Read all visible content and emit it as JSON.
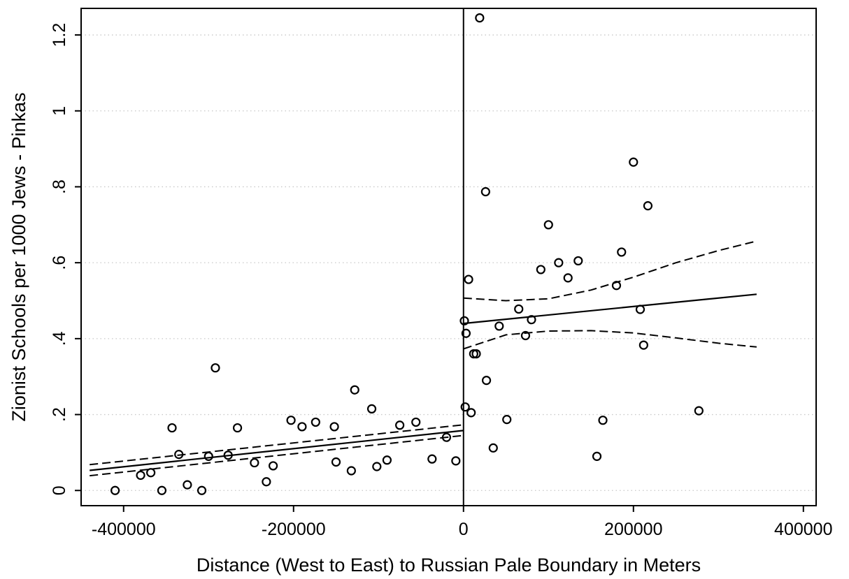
{
  "chart_data": {
    "type": "scatter",
    "xlabel": "Distance (West to East) to Russian Pale Boundary in Meters",
    "ylabel": "Zionist Schools per 1000 Jews - Pinkas",
    "xlim": [
      -450000,
      415000
    ],
    "ylim": [
      -0.04,
      1.27
    ],
    "xticks": [
      -400000,
      -200000,
      0,
      200000,
      400000
    ],
    "xtick_labels": [
      "-400000",
      "-200000",
      "0",
      "200000",
      "400000"
    ],
    "yticks": [
      0,
      0.2,
      0.4,
      0.6,
      0.8,
      1,
      1.2
    ],
    "ytick_labels": [
      "0",
      ".2",
      ".4",
      ".6",
      ".8",
      "1",
      "1.2"
    ],
    "grid": "horizontal dotted",
    "cutoff_x": 0,
    "points": [
      {
        "x": -410000,
        "y": 0.0
      },
      {
        "x": -380000,
        "y": 0.04
      },
      {
        "x": -368000,
        "y": 0.047
      },
      {
        "x": -355000,
        "y": 0.0
      },
      {
        "x": -343000,
        "y": 0.165
      },
      {
        "x": -335000,
        "y": 0.095
      },
      {
        "x": -325000,
        "y": 0.015
      },
      {
        "x": -308000,
        "y": 0.0
      },
      {
        "x": -300000,
        "y": 0.09
      },
      {
        "x": -292000,
        "y": 0.323
      },
      {
        "x": -277000,
        "y": 0.093
      },
      {
        "x": -266000,
        "y": 0.165
      },
      {
        "x": -246000,
        "y": 0.073
      },
      {
        "x": -232000,
        "y": 0.023
      },
      {
        "x": -224000,
        "y": 0.065
      },
      {
        "x": -203000,
        "y": 0.185
      },
      {
        "x": -190000,
        "y": 0.168
      },
      {
        "x": -174000,
        "y": 0.18
      },
      {
        "x": -152000,
        "y": 0.168
      },
      {
        "x": -150000,
        "y": 0.075
      },
      {
        "x": -132000,
        "y": 0.052
      },
      {
        "x": -128000,
        "y": 0.265
      },
      {
        "x": -108000,
        "y": 0.215
      },
      {
        "x": -102000,
        "y": 0.063
      },
      {
        "x": -90000,
        "y": 0.08
      },
      {
        "x": -75000,
        "y": 0.172
      },
      {
        "x": -56000,
        "y": 0.18
      },
      {
        "x": -37000,
        "y": 0.083
      },
      {
        "x": -20000,
        "y": 0.14
      },
      {
        "x": -9000,
        "y": 0.078
      },
      {
        "x": 2000,
        "y": 0.22
      },
      {
        "x": 1000,
        "y": 0.447
      },
      {
        "x": 3000,
        "y": 0.414
      },
      {
        "x": 6000,
        "y": 0.556
      },
      {
        "x": 9000,
        "y": 0.205
      },
      {
        "x": 12000,
        "y": 0.36
      },
      {
        "x": 15000,
        "y": 0.36
      },
      {
        "x": 19000,
        "y": 1.245
      },
      {
        "x": 26000,
        "y": 0.787
      },
      {
        "x": 27000,
        "y": 0.29
      },
      {
        "x": 35000,
        "y": 0.112
      },
      {
        "x": 42000,
        "y": 0.433
      },
      {
        "x": 51000,
        "y": 0.187
      },
      {
        "x": 65000,
        "y": 0.478
      },
      {
        "x": 73000,
        "y": 0.408
      },
      {
        "x": 80000,
        "y": 0.45
      },
      {
        "x": 91000,
        "y": 0.582
      },
      {
        "x": 100000,
        "y": 0.7
      },
      {
        "x": 112000,
        "y": 0.6
      },
      {
        "x": 123000,
        "y": 0.56
      },
      {
        "x": 135000,
        "y": 0.605
      },
      {
        "x": 157000,
        "y": 0.09
      },
      {
        "x": 164000,
        "y": 0.185
      },
      {
        "x": 180000,
        "y": 0.54
      },
      {
        "x": 186000,
        "y": 0.628
      },
      {
        "x": 200000,
        "y": 0.865
      },
      {
        "x": 208000,
        "y": 0.477
      },
      {
        "x": 212000,
        "y": 0.383
      },
      {
        "x": 217000,
        "y": 0.75
      },
      {
        "x": 277000,
        "y": 0.21
      }
    ],
    "fits": [
      {
        "x": [
          -440000,
          0
        ],
        "fit": [
          0.053,
          0.158
        ],
        "ci_upper": [
          0.068,
          0.173
        ],
        "ci_lower": [
          0.039,
          0.145
        ]
      },
      {
        "x": [
          0,
          345000
        ],
        "fit": [
          0.44,
          0.517
        ],
        "ci_x": [
          0,
          50000,
          100000,
          150000,
          200000,
          250000,
          300000,
          345000
        ],
        "ci_upper": [
          0.507,
          0.5,
          0.505,
          0.528,
          0.562,
          0.6,
          0.632,
          0.657
        ],
        "ci_lower": [
          0.373,
          0.41,
          0.42,
          0.421,
          0.415,
          0.402,
          0.388,
          0.378
        ]
      }
    ]
  }
}
